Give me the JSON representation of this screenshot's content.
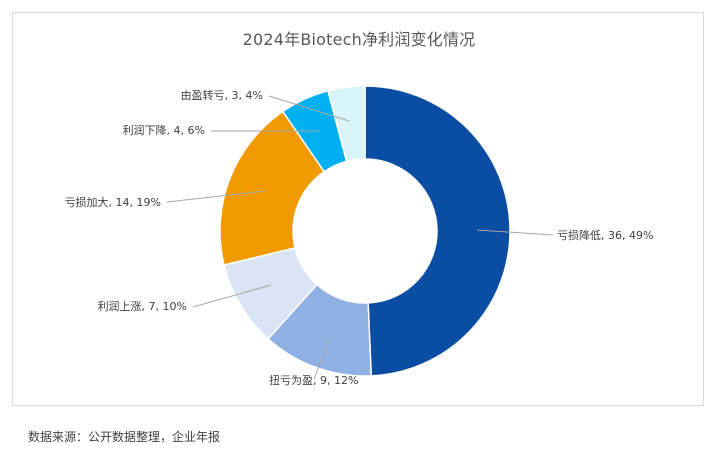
{
  "chart_data": {
    "type": "pie",
    "title": "2024年Biotech净利润变化情况",
    "slices": [
      {
        "label": "亏损降低",
        "value": 36,
        "percent": "49%",
        "color": "#0a4da2"
      },
      {
        "label": "扭亏为盈",
        "value": 9,
        "percent": "12%",
        "color": "#8fb0e3"
      },
      {
        "label": "利润上涨",
        "value": 7,
        "percent": "10%",
        "color": "#d9e4f5"
      },
      {
        "label": "亏损加大",
        "value": 14,
        "percent": "19%",
        "color": "#f09a00"
      },
      {
        "label": "利润下降",
        "value": 4,
        "percent": "6%",
        "color": "#00b0f0"
      },
      {
        "label": "由盈转亏",
        "value": 3,
        "percent": "4%",
        "color": "#d9f5f7"
      }
    ],
    "slice_labels": [
      "亏损降低, 36, 49%",
      "扭亏为盈, 9, 12%",
      "利润上涨, 7, 10%",
      "亏损加大, 14, 19%",
      "利润下降, 4, 6%",
      "由盈转亏, 3, 4%"
    ]
  },
  "footer": {
    "source": "数据来源：公开数据整理，企业年报"
  }
}
